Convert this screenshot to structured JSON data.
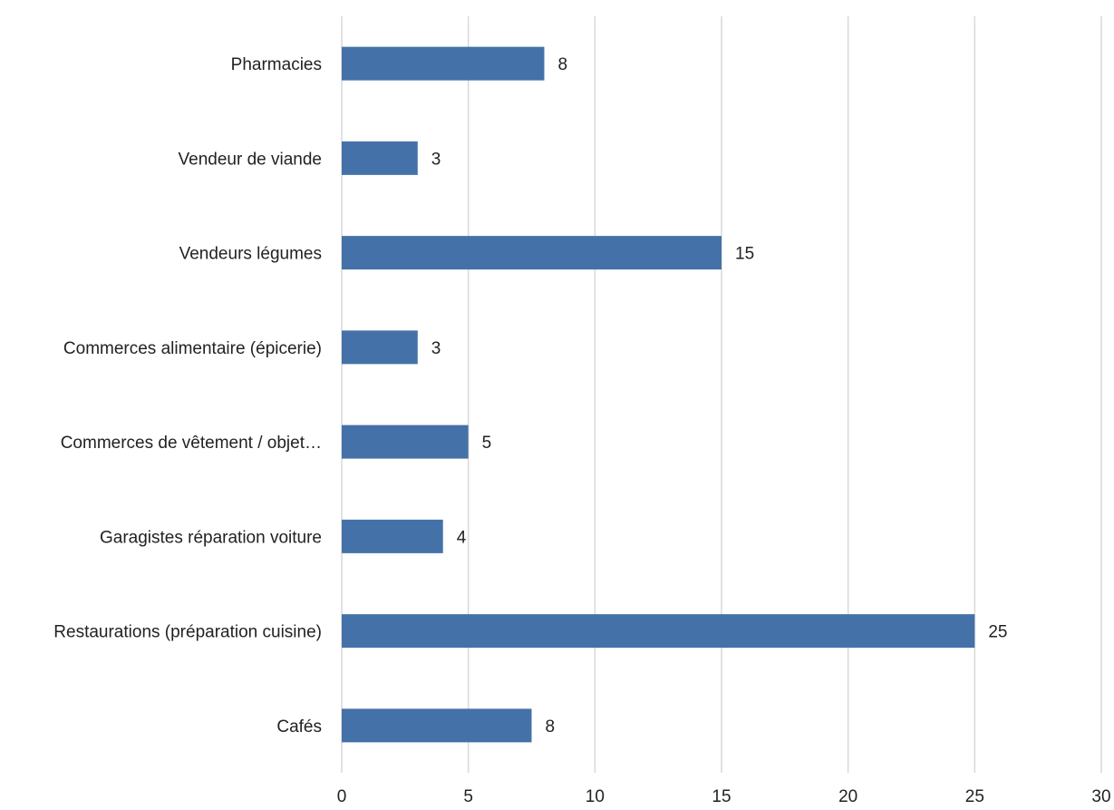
{
  "chart_data": {
    "type": "bar",
    "orientation": "horizontal",
    "categories": [
      "Pharmacies",
      "Vendeur de viande",
      "Vendeurs légumes",
      "Commerces alimentaire (épicerie)",
      "Commerces de vêtement / objet…",
      "Garagistes réparation voiture",
      "Restaurations (préparation cuisine)",
      "Cafés"
    ],
    "values": [
      8,
      3,
      15,
      3,
      5,
      4,
      25,
      7.5
    ],
    "data_labels": [
      "8",
      "3",
      "15",
      "3",
      "5",
      "4",
      "25",
      "8"
    ],
    "x_ticks": [
      "0",
      "5",
      "10",
      "15",
      "20",
      "25",
      "30"
    ],
    "xlim": [
      0,
      30
    ],
    "grid": "vertical",
    "legend": "none",
    "title": "",
    "xlabel": "",
    "ylabel": "",
    "bar_color": "#4472a8"
  }
}
